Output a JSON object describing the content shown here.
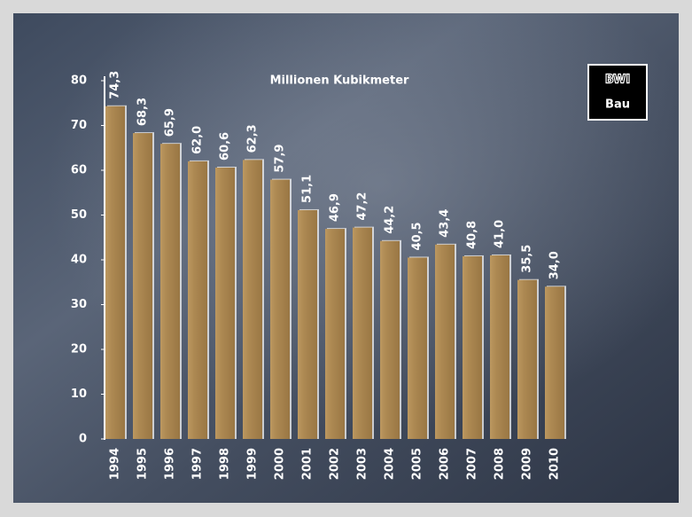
{
  "chart_data": {
    "type": "bar",
    "subtitle": "Millionen Kubikmeter",
    "logo": {
      "top": "BWI",
      "bottom": "Bau"
    },
    "categories": [
      "1994",
      "1995",
      "1996",
      "1997",
      "1998",
      "1999",
      "2000",
      "2001",
      "2002",
      "2003",
      "2004",
      "2005",
      "2006",
      "2007",
      "2008",
      "2009",
      "2010"
    ],
    "values": [
      74.3,
      68.3,
      65.9,
      62.0,
      60.6,
      62.3,
      57.9,
      51.1,
      46.9,
      47.2,
      44.2,
      40.5,
      43.4,
      40.8,
      41.0,
      35.5,
      34.0
    ],
    "value_labels": [
      "74,3",
      "68,3",
      "65,9",
      "62,0",
      "60,6",
      "62,3",
      "57,9",
      "51,1",
      "46,9",
      "47,2",
      "44,2",
      "40,5",
      "43,4",
      "40,8",
      "41,0",
      "35,5",
      "34,0"
    ],
    "color": "#a9854f",
    "ylim": [
      0,
      80
    ],
    "yticks": [
      0,
      10,
      20,
      30,
      40,
      50,
      60,
      70,
      80
    ],
    "grid": false
  }
}
